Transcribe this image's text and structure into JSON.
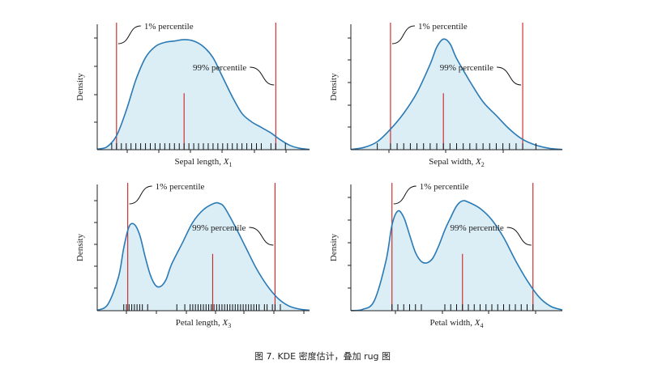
{
  "caption": "图 7. KDE 密度估计，叠加 rug 图",
  "colors": {
    "kde_line": "#2a7ab5",
    "kde_fill": "#dbedf5",
    "percentile_line": "#d02020",
    "rug": "#111111"
  },
  "chart_data": [
    {
      "type": "area",
      "xlabel": "Sepal length, ",
      "xlabel_var": "X",
      "xlabel_sub": "1",
      "ylabel": "Density",
      "xlim": [
        4.0,
        8.4
      ],
      "ylim": [
        0,
        0.45
      ],
      "p1": 4.4,
      "p99": 7.7,
      "median": 5.8,
      "annot_p1": "1% percentile",
      "annot_p99": "99% percentile",
      "curve": [
        [
          4.0,
          0.002
        ],
        [
          4.2,
          0.01
        ],
        [
          4.4,
          0.05
        ],
        [
          4.6,
          0.14
        ],
        [
          4.8,
          0.25
        ],
        [
          5.0,
          0.33
        ],
        [
          5.2,
          0.37
        ],
        [
          5.4,
          0.385
        ],
        [
          5.6,
          0.39
        ],
        [
          5.8,
          0.395
        ],
        [
          6.0,
          0.39
        ],
        [
          6.2,
          0.37
        ],
        [
          6.4,
          0.33
        ],
        [
          6.6,
          0.26
        ],
        [
          6.8,
          0.19
        ],
        [
          7.0,
          0.13
        ],
        [
          7.2,
          0.1
        ],
        [
          7.4,
          0.08
        ],
        [
          7.6,
          0.06
        ],
        [
          7.8,
          0.035
        ],
        [
          8.0,
          0.015
        ],
        [
          8.2,
          0.005
        ],
        [
          8.4,
          0.001
        ]
      ],
      "rug": [
        4.3,
        4.4,
        4.5,
        4.6,
        4.7,
        4.8,
        4.9,
        5.0,
        5.1,
        5.2,
        5.3,
        5.4,
        5.5,
        5.6,
        5.7,
        5.8,
        5.9,
        6.0,
        6.1,
        6.2,
        6.3,
        6.4,
        6.5,
        6.6,
        6.7,
        6.8,
        6.9,
        7.0,
        7.1,
        7.2,
        7.3,
        7.4,
        7.6,
        7.7,
        7.9
      ]
    },
    {
      "type": "area",
      "xlabel": "Sepal width, ",
      "xlabel_var": "X",
      "xlabel_sub": "2",
      "ylabel": "Density",
      "xlim": [
        1.6,
        4.8
      ],
      "ylim": [
        0,
        1.1
      ],
      "p1": 2.2,
      "p99": 4.2,
      "median": 3.0,
      "annot_p1": "1% percentile",
      "annot_p99": "99% percentile",
      "curve": [
        [
          1.6,
          0.003
        ],
        [
          1.8,
          0.02
        ],
        [
          2.0,
          0.07
        ],
        [
          2.2,
          0.18
        ],
        [
          2.4,
          0.32
        ],
        [
          2.6,
          0.5
        ],
        [
          2.8,
          0.75
        ],
        [
          2.9,
          0.9
        ],
        [
          3.0,
          0.97
        ],
        [
          3.1,
          0.93
        ],
        [
          3.2,
          0.8
        ],
        [
          3.4,
          0.6
        ],
        [
          3.6,
          0.42
        ],
        [
          3.8,
          0.3
        ],
        [
          4.0,
          0.18
        ],
        [
          4.2,
          0.09
        ],
        [
          4.4,
          0.04
        ],
        [
          4.6,
          0.012
        ],
        [
          4.8,
          0.002
        ]
      ],
      "rug": [
        2.0,
        2.2,
        2.3,
        2.4,
        2.5,
        2.6,
        2.7,
        2.8,
        2.9,
        3.0,
        3.1,
        3.2,
        3.3,
        3.4,
        3.5,
        3.6,
        3.7,
        3.8,
        3.9,
        4.0,
        4.1,
        4.2,
        4.4
      ]
    },
    {
      "type": "area",
      "xlabel": "Petal length, ",
      "xlabel_var": "X",
      "xlabel_sub": "3",
      "ylabel": "Density",
      "xlim": [
        0,
        8
      ],
      "ylim": [
        0,
        0.3
      ],
      "p1": 1.15,
      "p99": 6.7,
      "median": 4.35,
      "annot_p1": "1% percentile",
      "annot_p99": "99% percentile",
      "curve": [
        [
          0.0,
          0.001
        ],
        [
          0.4,
          0.015
        ],
        [
          0.8,
          0.08
        ],
        [
          1.0,
          0.15
        ],
        [
          1.2,
          0.2
        ],
        [
          1.4,
          0.205
        ],
        [
          1.6,
          0.18
        ],
        [
          1.8,
          0.13
        ],
        [
          2.0,
          0.085
        ],
        [
          2.2,
          0.06
        ],
        [
          2.4,
          0.058
        ],
        [
          2.6,
          0.075
        ],
        [
          2.8,
          0.11
        ],
        [
          3.2,
          0.16
        ],
        [
          3.6,
          0.21
        ],
        [
          4.0,
          0.24
        ],
        [
          4.4,
          0.255
        ],
        [
          4.6,
          0.255
        ],
        [
          4.8,
          0.245
        ],
        [
          5.2,
          0.2
        ],
        [
          5.6,
          0.15
        ],
        [
          6.0,
          0.1
        ],
        [
          6.4,
          0.06
        ],
        [
          6.8,
          0.03
        ],
        [
          7.2,
          0.012
        ],
        [
          7.6,
          0.004
        ],
        [
          8.0,
          0.001
        ]
      ],
      "rug": [
        1.0,
        1.1,
        1.2,
        1.3,
        1.4,
        1.5,
        1.6,
        1.7,
        1.9,
        3.0,
        3.3,
        3.5,
        3.6,
        3.7,
        3.8,
        3.9,
        4.0,
        4.1,
        4.2,
        4.3,
        4.4,
        4.5,
        4.6,
        4.7,
        4.8,
        4.9,
        5.0,
        5.1,
        5.2,
        5.3,
        5.4,
        5.5,
        5.6,
        5.7,
        5.8,
        5.9,
        6.0,
        6.1,
        6.3,
        6.4,
        6.6,
        6.7,
        6.9
      ]
    },
    {
      "type": "area",
      "xlabel": "Petal width, ",
      "xlabel_var": "X",
      "xlabel_sub": "4",
      "ylabel": "Density",
      "xlim": [
        -0.6,
        3.0
      ],
      "ylim": [
        0,
        1.0
      ],
      "p1": 0.1,
      "p99": 2.5,
      "median": 1.3,
      "annot_p1": "1% percentile",
      "annot_p99": "99% percentile",
      "curve": [
        [
          -0.6,
          0.001
        ],
        [
          -0.4,
          0.01
        ],
        [
          -0.2,
          0.08
        ],
        [
          0.0,
          0.4
        ],
        [
          0.1,
          0.68
        ],
        [
          0.2,
          0.79
        ],
        [
          0.3,
          0.74
        ],
        [
          0.4,
          0.6
        ],
        [
          0.5,
          0.46
        ],
        [
          0.6,
          0.39
        ],
        [
          0.7,
          0.38
        ],
        [
          0.8,
          0.42
        ],
        [
          0.9,
          0.52
        ],
        [
          1.0,
          0.64
        ],
        [
          1.1,
          0.74
        ],
        [
          1.2,
          0.83
        ],
        [
          1.3,
          0.87
        ],
        [
          1.4,
          0.86
        ],
        [
          1.6,
          0.81
        ],
        [
          1.8,
          0.72
        ],
        [
          2.0,
          0.58
        ],
        [
          2.2,
          0.4
        ],
        [
          2.4,
          0.24
        ],
        [
          2.6,
          0.11
        ],
        [
          2.8,
          0.035
        ],
        [
          3.0,
          0.006
        ]
      ],
      "rug": [
        0.1,
        0.2,
        0.3,
        0.4,
        0.5,
        0.6,
        1.0,
        1.1,
        1.2,
        1.3,
        1.4,
        1.5,
        1.6,
        1.7,
        1.8,
        1.9,
        2.0,
        2.1,
        2.2,
        2.3,
        2.4,
        2.5
      ]
    }
  ]
}
